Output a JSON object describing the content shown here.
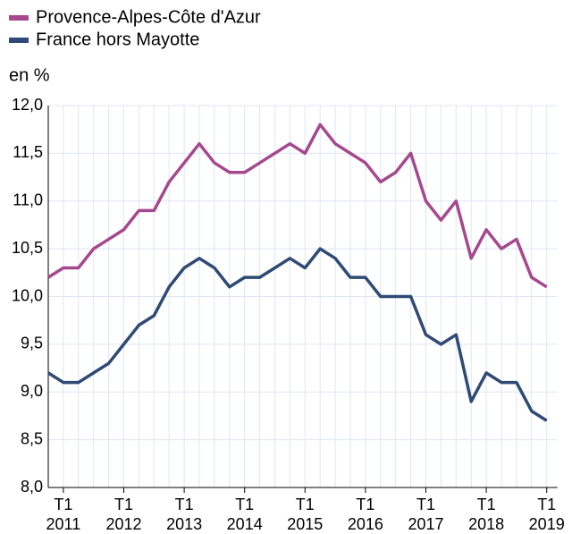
{
  "chart_data": {
    "type": "line",
    "y_axis_label": "en %",
    "categories": [
      null,
      "T1",
      null,
      null,
      null,
      "T1",
      null,
      null,
      null,
      "T1",
      null,
      null,
      null,
      "T1",
      null,
      null,
      null,
      "T1",
      null,
      null,
      null,
      "T1",
      null,
      null,
      null,
      "T1",
      null,
      null,
      null,
      "T1",
      null,
      null,
      null,
      "T1"
    ],
    "category_years": [
      null,
      "2011",
      null,
      null,
      null,
      "2012",
      null,
      null,
      null,
      "2013",
      null,
      null,
      null,
      "2014",
      null,
      null,
      null,
      "2015",
      null,
      null,
      null,
      "2016",
      null,
      null,
      null,
      "2017",
      null,
      null,
      null,
      "2018",
      null,
      null,
      null,
      "2019"
    ],
    "series": [
      {
        "name": "Provence-Alpes-Côte d'Azur",
        "color": "#a5498f",
        "values": [
          10.2,
          10.3,
          10.3,
          10.5,
          10.6,
          10.7,
          10.9,
          10.9,
          11.2,
          11.4,
          11.6,
          11.4,
          11.3,
          11.3,
          11.4,
          11.5,
          11.6,
          11.5,
          11.8,
          11.6,
          11.5,
          11.4,
          11.2,
          11.3,
          11.5,
          11.0,
          10.8,
          11.0,
          10.4,
          10.7,
          10.5,
          10.6,
          10.2,
          10.1
        ]
      },
      {
        "name": "France hors Mayotte",
        "color": "#2f4a74",
        "values": [
          9.2,
          9.1,
          9.1,
          9.2,
          9.3,
          9.5,
          9.7,
          9.8,
          10.1,
          10.3,
          10.4,
          10.3,
          10.1,
          10.2,
          10.2,
          10.3,
          10.4,
          10.3,
          10.5,
          10.4,
          10.2,
          10.2,
          10.0,
          10.0,
          10.0,
          9.6,
          9.5,
          9.6,
          8.9,
          9.2,
          9.1,
          9.1,
          8.8,
          8.7
        ]
      }
    ],
    "ylim": [
      8,
      12
    ],
    "yticks": [
      {
        "value": 8,
        "label": "8,0"
      },
      {
        "value": 8.5,
        "label": "8,5"
      },
      {
        "value": 9,
        "label": "9,0"
      },
      {
        "value": 9.5,
        "label": "9,5"
      },
      {
        "value": 10,
        "label": "10,0"
      },
      {
        "value": 10.5,
        "label": "10,5"
      },
      {
        "value": 11,
        "label": "11,0"
      },
      {
        "value": 11.5,
        "label": "11,5"
      },
      {
        "value": 12,
        "label": "12,0"
      }
    ],
    "grid": true,
    "legend": "top-left"
  }
}
